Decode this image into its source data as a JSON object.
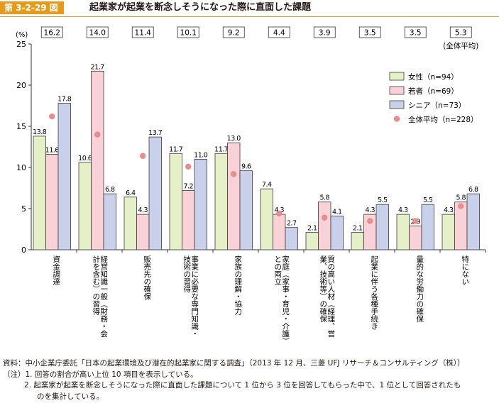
{
  "figure": {
    "number": "第 3-2-29 図",
    "title": "起業家が起業を断念しそうになった際に直面した課題"
  },
  "chart_data": {
    "type": "bar",
    "ylabel": "(%)",
    "ylim": [
      0,
      25
    ],
    "yticks": [
      0,
      5,
      10,
      15,
      20,
      25
    ],
    "categories": [
      "資金調達",
      "経営知識一般（財務・会計を含む）の習得",
      "販売先の確保",
      "事業に必要な専門知識・技術の習得",
      "家族の理解・協力",
      "家庭（家事・育児・介護）との両立",
      "質の高い人材（経理、営業、技術等）の確保",
      "起業に伴う各種手続き",
      "量的な労働力の確保",
      "特にない"
    ],
    "category_lines": [
      [
        "資金調達"
      ],
      [
        "経営知識一般（財務・会",
        "計を含む）の習得"
      ],
      [
        "販売先の確保"
      ],
      [
        "事業に必要な専門知識・",
        "技術の習得"
      ],
      [
        "家族の理解・協力"
      ],
      [
        "家庭（家事・育児・介護）",
        "との両立"
      ],
      [
        "質の高い人材（経理、営",
        "業、技術等）の確保"
      ],
      [
        "起業に伴う各種手続き"
      ],
      [
        "量的な労働力の確保"
      ],
      [
        "特にない"
      ]
    ],
    "series": [
      {
        "name": "女性（n=94）",
        "color": "#e6f0c8",
        "values": [
          13.8,
          10.6,
          6.4,
          11.7,
          11.7,
          7.4,
          2.1,
          2.1,
          4.3,
          4.3
        ]
      },
      {
        "name": "若者（n=69）",
        "color": "#f9d2d8",
        "values": [
          11.6,
          21.7,
          4.3,
          7.2,
          13.0,
          4.3,
          5.8,
          4.3,
          2.9,
          5.8
        ]
      },
      {
        "name": "シニア（n=73）",
        "color": "#c9d0ea",
        "values": [
          17.8,
          6.8,
          13.7,
          11.0,
          9.6,
          2.7,
          4.1,
          5.5,
          5.5,
          6.8
        ]
      }
    ],
    "overall": {
      "name": "全体平均（n=228）",
      "color": "#e78c8f",
      "values": [
        16.2,
        14.0,
        11.4,
        10.1,
        9.2,
        4.4,
        3.9,
        3.5,
        3.5,
        5.3
      ],
      "box_labels": [
        "16.2",
        "14.0",
        "11.4",
        "10.1",
        "9.2",
        "4.4",
        "3.9",
        "3.5",
        "3.5",
        "5.3"
      ],
      "box_caption": "(全体平均)"
    },
    "legend_position": "top-right",
    "grid": false
  },
  "notes": {
    "source": "資料：中小企業庁委託「日本の起業環境及び潜在的起業家に関する調査」（2013 年 12 月、三菱 UFJ リサーチ＆コンサルティング（株））",
    "note1": "（注）1. 回答の割合が高い上位 10 項目を表示している。",
    "note2a": "2. 起業家が起業を断念しそうになった際に直面した課題について 1 位から 3 位を回答してもらった中で、1 位として回答されたも",
    "note2b": "のを集計している。"
  }
}
